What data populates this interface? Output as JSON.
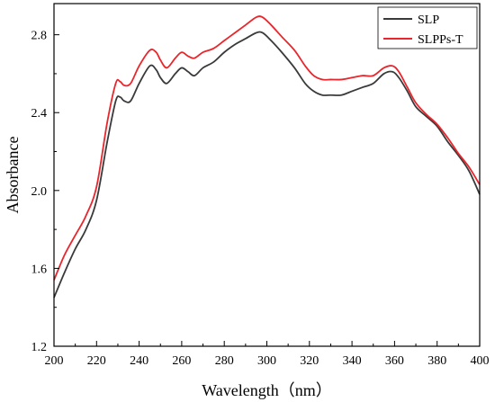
{
  "chart_data": {
    "type": "line",
    "title": "",
    "xlabel": "Wavelength（nm）",
    "ylabel": "Absorbance",
    "xlim": [
      200,
      400
    ],
    "ylim": [
      1.2,
      2.96
    ],
    "x_ticks": [
      200,
      220,
      240,
      260,
      280,
      300,
      320,
      340,
      360,
      380,
      400
    ],
    "x_tick_labels": [
      "200",
      "220",
      "240",
      "260",
      "280",
      "300",
      "320",
      "340",
      "360",
      "380",
      "400"
    ],
    "y_ticks": [
      1.2,
      1.6,
      2.0,
      2.4,
      2.8
    ],
    "y_tick_labels": [
      "1.2",
      "1.6",
      "2.0",
      "2.4",
      "2.8"
    ],
    "grid": false,
    "legend_position": "top-right",
    "series": [
      {
        "name": "SLP",
        "color": "#3a3a3a",
        "x": [
          200,
          205,
          210,
          215,
          220,
          225,
          229,
          231,
          233,
          236,
          240,
          245,
          248,
          250,
          253,
          257,
          260,
          263,
          266,
          270,
          275,
          280,
          285,
          290,
          295,
          298,
          302,
          307,
          313,
          318,
          322,
          326,
          330,
          335,
          340,
          345,
          350,
          355,
          359,
          362,
          366,
          370,
          375,
          380,
          385,
          390,
          395,
          400
        ],
        "y": [
          1.45,
          1.58,
          1.7,
          1.8,
          1.95,
          2.25,
          2.46,
          2.48,
          2.46,
          2.46,
          2.55,
          2.64,
          2.62,
          2.58,
          2.55,
          2.6,
          2.63,
          2.61,
          2.59,
          2.63,
          2.66,
          2.71,
          2.75,
          2.78,
          2.81,
          2.81,
          2.77,
          2.71,
          2.63,
          2.55,
          2.51,
          2.49,
          2.49,
          2.49,
          2.51,
          2.53,
          2.55,
          2.6,
          2.61,
          2.58,
          2.51,
          2.43,
          2.38,
          2.33,
          2.25,
          2.18,
          2.1,
          1.98
        ]
      },
      {
        "name": "SLPPs-T",
        "color": "#e8262c",
        "x": [
          200,
          205,
          210,
          215,
          220,
          225,
          229,
          231,
          233,
          236,
          240,
          245,
          248,
          250,
          253,
          257,
          260,
          263,
          266,
          270,
          275,
          280,
          285,
          290,
          295,
          298,
          302,
          307,
          313,
          318,
          322,
          326,
          330,
          335,
          340,
          345,
          350,
          355,
          359,
          362,
          366,
          370,
          375,
          380,
          385,
          390,
          395,
          400
        ],
        "y": [
          1.54,
          1.67,
          1.77,
          1.87,
          2.02,
          2.35,
          2.55,
          2.56,
          2.54,
          2.55,
          2.64,
          2.72,
          2.71,
          2.67,
          2.63,
          2.68,
          2.71,
          2.69,
          2.68,
          2.71,
          2.73,
          2.77,
          2.81,
          2.85,
          2.89,
          2.89,
          2.85,
          2.79,
          2.72,
          2.64,
          2.59,
          2.57,
          2.57,
          2.57,
          2.58,
          2.59,
          2.59,
          2.63,
          2.64,
          2.61,
          2.53,
          2.45,
          2.39,
          2.34,
          2.27,
          2.19,
          2.12,
          2.03
        ]
      }
    ]
  }
}
